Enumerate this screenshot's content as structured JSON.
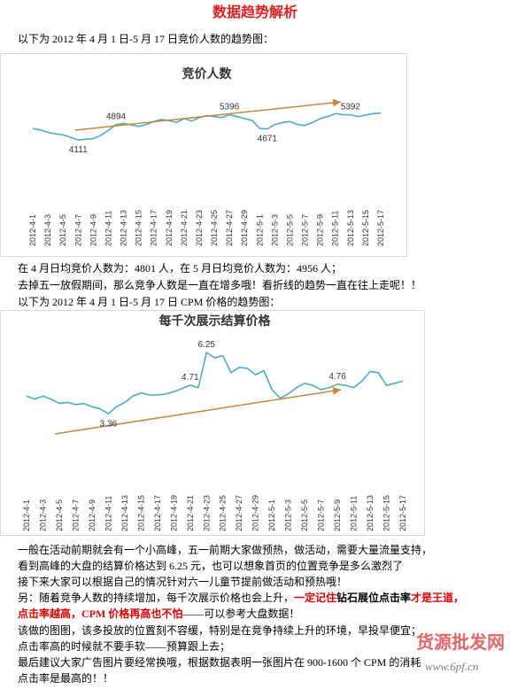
{
  "document": {
    "title": "数据趋势解析",
    "intro_1": "以下为 2012 年 4 月 1 日-5 月 17 日竞价人数的趋势图：",
    "text_1": "在 4 月日均竞价人数为：4801 人，在 5 月日均竞价人数为：4956 人；",
    "text_2": "去掉五一放假期间，那么竞争人数是一直在增多哦！看折线的趋势一直在往上走呢！！",
    "intro_2": "以下为 2012 年 4 月 1 日-5 月 17 日 CPM 价格的趋势图：",
    "para_1": "一般在活动前期就会有一个小高峰，五一前期大家做预热，做活动，需要大量流量支持，",
    "para_2": "看到高峰的大盘的结算价格达到 6.25 元，也可以想象首页的位置竞争是多么激烈了",
    "para_3": "接下来大家可以根据自己的情况针对六一儿童节提前做活动和预热哦！",
    "para_4": [
      "另：随着竞争人数的持续增加，每千次展示价格也会上升，",
      "一定记住",
      "钻石展位点击率",
      "才是王道，点击率越高，CPM 价格再高也不怕",
      "——可以参考大盘数据！"
    ],
    "para_5": "该做的图图，该多投放的位置刻不容缓，特别是在竞争持续上升的环境，早投早便宜；",
    "para_6": "点击率高的时候就不要手软——预算跟上去；",
    "para_7": "最后建议大家广告图片要经常换哦，根据数据表明一张图片在 900-1600 个 CPM 的消耗",
    "para_8": "点击率是最高的！！",
    "watermark": "货源批发网",
    "watermark_url": "www.6pf.cn"
  },
  "chart_data": [
    {
      "type": "line",
      "title": "竞价人数",
      "color": "#4bacc6",
      "ylim": [
        2000,
        6500
      ],
      "categories": [
        "2012-4-1",
        null,
        "2012-4-3",
        null,
        "2012-4-5",
        null,
        "2012-4-7",
        null,
        "2012-4-9",
        null,
        "2012-4-11",
        null,
        "2012-4-13",
        null,
        "2012-4-15",
        null,
        "2012-4-17",
        null,
        "2012-4-19",
        null,
        "2012-4-21",
        null,
        "2012-4-23",
        null,
        "2012-4-25",
        null,
        "2012-4-27",
        null,
        "2012-4-29",
        null,
        "2012-5-1",
        null,
        "2012-5-3",
        null,
        "2012-5-5",
        null,
        "2012-5-7",
        null,
        "2012-5-9",
        null,
        "2012-5-11",
        null,
        "2012-5-13",
        null,
        "2012-5-15",
        null,
        "2012-5-17"
      ],
      "values": [
        4700,
        4620,
        4500,
        4420,
        4380,
        4250,
        4111,
        4150,
        4180,
        4350,
        4600,
        4894,
        4950,
        4880,
        4800,
        4900,
        5050,
        5150,
        5100,
        5000,
        5200,
        5080,
        5250,
        5350,
        5300,
        5250,
        5396,
        5300,
        5200,
        5100,
        4700,
        4671,
        4900,
        5000,
        5050,
        4900,
        4850,
        5000,
        5200,
        5300,
        5450,
        5400,
        5392,
        5300,
        5380,
        5450,
        5480
      ],
      "value_labels": [
        null,
        null,
        null,
        null,
        null,
        null,
        "4111",
        null,
        null,
        null,
        null,
        "4894",
        null,
        null,
        null,
        null,
        null,
        null,
        null,
        null,
        null,
        null,
        null,
        null,
        null,
        null,
        "5396",
        null,
        null,
        null,
        null,
        "4671",
        null,
        null,
        null,
        null,
        null,
        null,
        null,
        null,
        null,
        null,
        "5392",
        null,
        null,
        null,
        null
      ]
    },
    {
      "type": "line",
      "title": "每千次展示结算价格",
      "color": "#4bacc6",
      "ylim": [
        2,
        7
      ],
      "categories": [
        "2012-4-1",
        null,
        "2012-4-3",
        null,
        "2012-4-5",
        null,
        "2012-4-7",
        null,
        "2012-4-9",
        null,
        "2012-4-11",
        null,
        "2012-4-13",
        null,
        "2012-4-15",
        null,
        "2012-4-17",
        null,
        "2012-4-19",
        null,
        "2012-4-21",
        null,
        "2012-4-23",
        null,
        "2012-4-25",
        null,
        "2012-4-27",
        null,
        "2012-4-29",
        null,
        "2012-5-1",
        null,
        "2012-5-3",
        null,
        "2012-5-5",
        null,
        "2012-5-7",
        null,
        "2012-5-9",
        null,
        "2012-5-11",
        null,
        "2012-5-13",
        null,
        "2012-5-15",
        null,
        "2012-5-17"
      ],
      "values": [
        4.2,
        4.05,
        4.2,
        4.05,
        3.85,
        3.9,
        3.8,
        3.85,
        3.7,
        3.6,
        3.36,
        3.7,
        3.9,
        4.2,
        4.35,
        4.25,
        4.25,
        4.3,
        4.4,
        4.55,
        4.71,
        4.6,
        6.25,
        6.0,
        6.1,
        5.3,
        5.55,
        5.5,
        5.2,
        5.4,
        4.5,
        4.1,
        4.3,
        4.6,
        4.8,
        4.7,
        4.5,
        4.6,
        4.76,
        4.7,
        4.6,
        4.9,
        5.35,
        5.3,
        4.7,
        4.8,
        4.9
      ],
      "value_labels": [
        null,
        null,
        null,
        null,
        null,
        null,
        null,
        null,
        null,
        null,
        "3.36",
        null,
        null,
        null,
        null,
        null,
        null,
        null,
        null,
        null,
        "4.71",
        null,
        "6.25",
        null,
        null,
        null,
        null,
        null,
        null,
        null,
        null,
        null,
        null,
        null,
        null,
        null,
        null,
        null,
        "4.76",
        null,
        null,
        null,
        null,
        null,
        null,
        null,
        null
      ]
    }
  ]
}
